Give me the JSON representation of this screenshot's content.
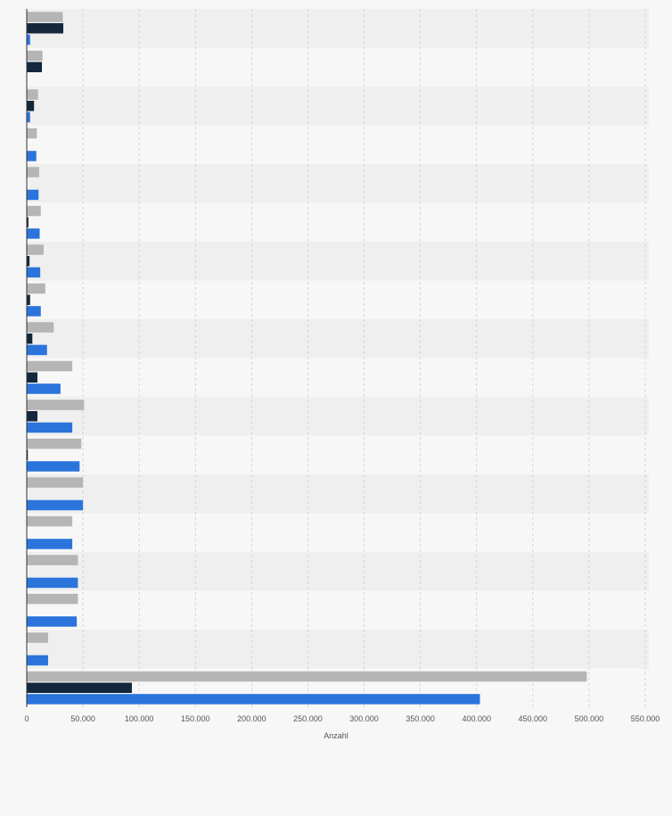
{
  "chart_data": {
    "type": "bar",
    "orientation": "horizontal",
    "categories": [
      "",
      "",
      "",
      "",
      "",
      "",
      "",
      "",
      "",
      "",
      "",
      "",
      "",
      "",
      "",
      "",
      "",
      ""
    ],
    "series": [
      {
        "color": "#b5b5b5",
        "values": [
          32000,
          14000,
          10000,
          9000,
          11000,
          12500,
          15000,
          16500,
          24000,
          40500,
          51000,
          48500,
          50000,
          40500,
          45500,
          45500,
          19000,
          498000
        ]
      },
      {
        "color": "#14273d",
        "values": [
          32500,
          13500,
          6500,
          0,
          0,
          1500,
          2500,
          3000,
          5000,
          9500,
          9500,
          1000,
          0,
          0,
          0,
          0,
          0,
          93500
        ]
      },
      {
        "color": "#2a74dc",
        "values": [
          3000,
          0,
          3000,
          8500,
          10500,
          11500,
          12000,
          12500,
          18000,
          30000,
          40500,
          47000,
          50000,
          40500,
          45500,
          44500,
          19000,
          403000
        ]
      }
    ],
    "xlabel": "Anzahl",
    "ylabel": "",
    "xlim": [
      0,
      550000
    ],
    "xticks": [
      0,
      50000,
      100000,
      150000,
      200000,
      250000,
      300000,
      350000,
      400000,
      450000,
      500000,
      550000
    ],
    "xtick_labels": [
      "0",
      "50.000",
      "100.000",
      "150.000",
      "200.000",
      "250.000",
      "300.000",
      "350.000",
      "400.000",
      "450.000",
      "500.000",
      "550.000"
    ],
    "grid": true,
    "legend": "none"
  },
  "colors": {
    "background": "#f7f7f7",
    "band_alt": "#efefef",
    "grid": "#cccccc",
    "axis": "#333333",
    "tick_text": "#555555"
  }
}
